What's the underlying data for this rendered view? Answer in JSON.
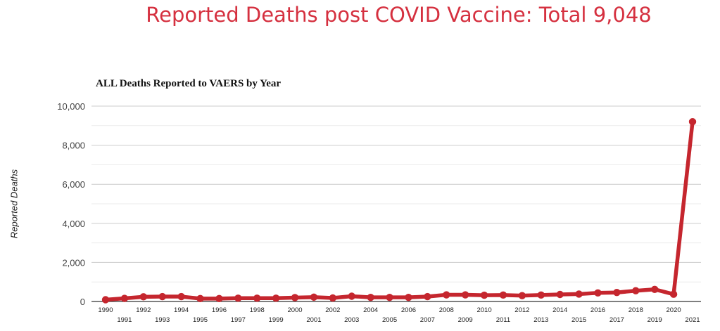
{
  "header": {
    "headline": "Reported Deaths post COVID Vaccine: Total 9,048"
  },
  "chart_data": {
    "type": "line",
    "title": "ALL Deaths Reported to VAERS by Year",
    "xlabel": "",
    "ylabel": "Reported Deaths",
    "ylim": [
      0,
      10000
    ],
    "yticks": [
      0,
      2000,
      4000,
      6000,
      8000,
      10000
    ],
    "ytick_labels": [
      "0",
      "2,000",
      "4,000",
      "6,000",
      "8,000",
      "10,000"
    ],
    "grid": true,
    "legend": "none",
    "colors": {
      "line": "#c5262e",
      "grid": "#d9d9d9"
    },
    "categories": [
      "1990",
      "1991",
      "1992",
      "1993",
      "1994",
      "1995",
      "1996",
      "1997",
      "1998",
      "1999",
      "2000",
      "2001",
      "2002",
      "2003",
      "2004",
      "2005",
      "2006",
      "2007",
      "2008",
      "2009",
      "2010",
      "2011",
      "2012",
      "2013",
      "2014",
      "2015",
      "2016",
      "2017",
      "2018",
      "2019",
      "2020",
      "2021"
    ],
    "series": [
      {
        "values": [
          90,
          160,
          240,
          250,
          250,
          150,
          150,
          170,
          170,
          170,
          200,
          220,
          180,
          270,
          210,
          210,
          210,
          250,
          340,
          340,
          320,
          330,
          300,
          330,
          360,
          380,
          440,
          460,
          550,
          620,
          370,
          9200
        ]
      }
    ]
  }
}
